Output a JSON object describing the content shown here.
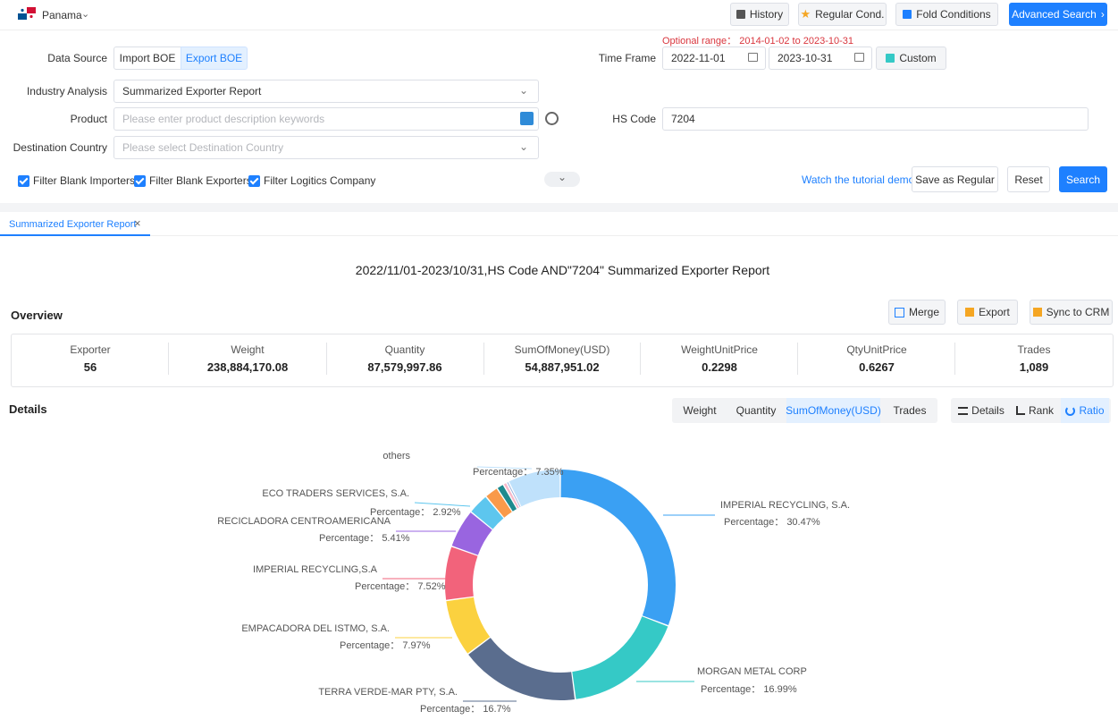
{
  "topbar": {
    "country": "Panama",
    "history": "History",
    "regular_cond": "Regular Cond.",
    "fold_conditions": "Fold Conditions",
    "advanced_search": "Advanced Search"
  },
  "form": {
    "optional_range": "Optional range： 2014-01-02 to 2023-10-31",
    "data_source_label": "Data Source",
    "import_boe": "Import BOE",
    "export_boe": "Export BOE",
    "time_frame_label": "Time Frame",
    "date_from": "2022-11-01",
    "date_to": "2023-10-31",
    "custom": "Custom",
    "industry_label": "Industry Analysis",
    "industry_value": "Summarized Exporter Report",
    "product_label": "Product",
    "product_placeholder": "Please enter product description keywords",
    "hs_label": "HS Code",
    "hs_value": "7204",
    "dest_label": "Destination Country",
    "dest_placeholder": "Please select Destination Country",
    "filter_importers": "Filter Blank Importers",
    "filter_exporters": "Filter Blank Exporters",
    "filter_logistics": "Filter Logitics Company",
    "tutorial": "Watch the tutorial demo",
    "save_regular": "Save as Regular",
    "reset": "Reset",
    "search": "Search"
  },
  "tab": {
    "label": "Summarized Exporter Report"
  },
  "report": {
    "title": "2022/11/01-2023/10/31,HS Code AND\"7204\" Summarized Exporter Report",
    "overview": "Overview",
    "merge": "Merge",
    "export": "Export",
    "sync_crm": "Sync to CRM",
    "stats": [
      {
        "key": "Exporter",
        "value": "56"
      },
      {
        "key": "Weight",
        "value": "238,884,170.08"
      },
      {
        "key": "Quantity",
        "value": "87,579,997.86"
      },
      {
        "key": "SumOfMoney(USD)",
        "value": "54,887,951.02"
      },
      {
        "key": "WeightUnitPrice",
        "value": "0.2298"
      },
      {
        "key": "QtyUnitPrice",
        "value": "0.6267"
      },
      {
        "key": "Trades",
        "value": "1,089"
      }
    ],
    "details": "Details",
    "metric_tabs": [
      "Weight",
      "Quantity",
      "SumOfMoney(USD)",
      "Trades"
    ],
    "view_tabs": [
      "Details",
      "Rank",
      "Ratio"
    ]
  },
  "chart_data": {
    "type": "pie",
    "donut": true,
    "percentage_prefix": "Percentage： ",
    "slices": [
      {
        "name": "IMPERIAL RECYCLING, S.A.",
        "value": 30.47,
        "label": "30.47%",
        "color": "#3aa0f3"
      },
      {
        "name": "MORGAN METAL CORP",
        "value": 16.99,
        "label": "16.99%",
        "color": "#35c9c6"
      },
      {
        "name": "TERRA VERDE-MAR PTY, S.A.",
        "value": 16.7,
        "label": "16.7%",
        "color": "#5a6d8e"
      },
      {
        "name": "EMPACADORA DEL ISTMO, S.A.",
        "value": 7.97,
        "label": "7.97%",
        "color": "#fbd13f"
      },
      {
        "name": "IMPERIAL RECYCLING,S.A",
        "value": 7.52,
        "label": "7.52%",
        "color": "#f2637b"
      },
      {
        "name": "RECICLADORA CENTROAMERICANA",
        "value": 5.41,
        "label": "5.41%",
        "color": "#9965e0"
      },
      {
        "name": "ECO TRADERS SERVICES, S.A.",
        "value": 2.92,
        "label": "2.92%",
        "color": "#5dc6ee"
      },
      {
        "name": "",
        "value": 1.9,
        "label": "",
        "color": "#f99a4a"
      },
      {
        "name": "",
        "value": 1.0,
        "label": "",
        "color": "#1f8a8e"
      },
      {
        "name": "",
        "value": 0.5,
        "label": "",
        "color": "#f8b8c9"
      },
      {
        "name": "",
        "value": 0.3,
        "label": "",
        "color": "#8aa8d8"
      },
      {
        "name": "others",
        "value": 7.35,
        "label": "7.35%",
        "color": "#bfe1fb"
      }
    ]
  }
}
